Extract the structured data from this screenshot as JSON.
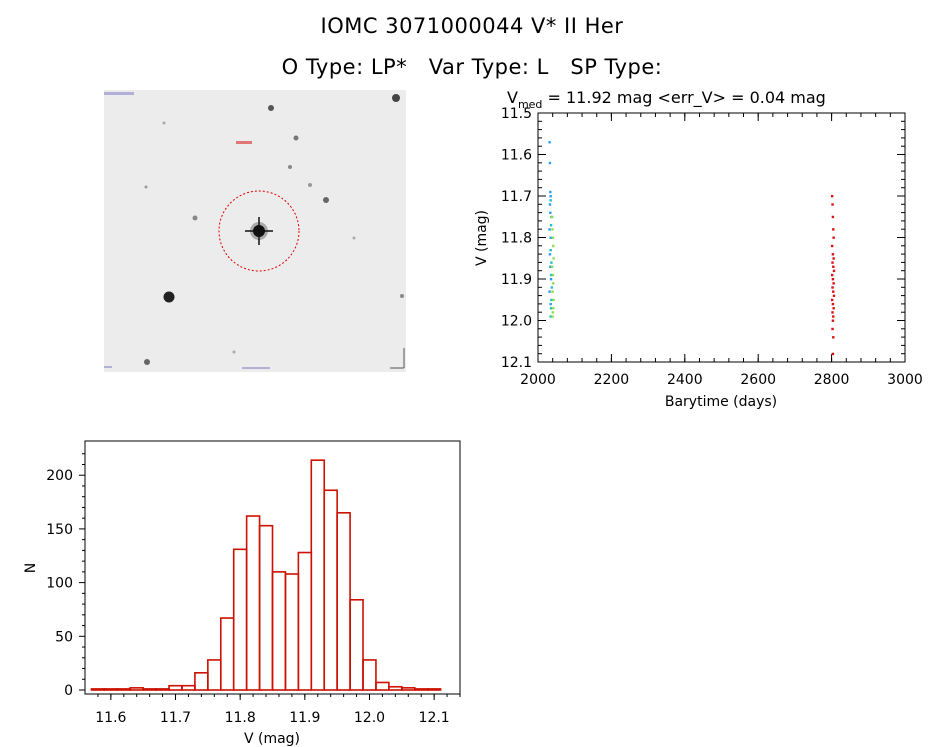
{
  "header": {
    "line1": "IOMC 3071000044    V* II Her",
    "otype": "O Type: LP*",
    "vartype": "Var Type: L",
    "sptype": "SP Type:"
  },
  "chart_data": [
    {
      "type": "image",
      "name": "finder-chart",
      "colors": {
        "background": "#ececec",
        "circle": "#dd0000"
      }
    },
    {
      "type": "scatter",
      "title_parts": {
        "v": "V",
        "sub": "med",
        "rest": " = 11.92 mag <err_V> = 0.04 mag"
      },
      "xlabel": "Barytime (days)",
      "ylabel": "V (mag)",
      "xlim": [
        2000,
        3000
      ],
      "ylim": [
        12.1,
        11.5
      ],
      "y_inverted": true,
      "xticks": [
        2000,
        2200,
        2400,
        2600,
        2800,
        3000
      ],
      "yticks": [
        11.5,
        11.6,
        11.7,
        11.8,
        11.9,
        12.0,
        12.1
      ],
      "xtick_labels": [
        "2000",
        "2200",
        "2400",
        "2600",
        "2800",
        "3000"
      ],
      "ytick_labels": [
        "11.5",
        "11.6",
        "11.7",
        "11.8",
        "11.9",
        "12.0",
        "12.1"
      ],
      "series": [
        {
          "color": "#2a9df4",
          "x": [
            2031,
            2032,
            2033,
            2034,
            2032,
            2033,
            2031,
            2034,
            2032,
            2033,
            2035,
            2031,
            2034
          ],
          "y": [
            11.57,
            11.62,
            11.69,
            11.7,
            11.72,
            11.74,
            11.78,
            11.8,
            11.84,
            11.87,
            11.9,
            11.93,
            11.96
          ]
        },
        {
          "color": "#20c0c8",
          "x": [
            2034,
            2036,
            2035,
            2037,
            2034,
            2036,
            2035,
            2037,
            2036,
            2035,
            2034
          ],
          "y": [
            11.71,
            11.75,
            11.77,
            11.8,
            11.83,
            11.86,
            11.89,
            11.92,
            11.95,
            11.97,
            11.99
          ]
        },
        {
          "color": "#8ee04a",
          "x": [
            2038,
            2039,
            2040,
            2041,
            2042,
            2038,
            2040,
            2041,
            2039,
            2042,
            2041,
            2040,
            2039
          ],
          "y": [
            11.75,
            11.78,
            11.8,
            11.82,
            11.85,
            11.87,
            11.89,
            11.91,
            11.93,
            11.95,
            11.97,
            11.98,
            11.99
          ]
        },
        {
          "color": "#dd1111",
          "x": [
            2801,
            2802,
            2803,
            2804,
            2805,
            2801,
            2803,
            2805,
            2802,
            2804,
            2806,
            2801,
            2803,
            2805,
            2802,
            2804,
            2806,
            2801,
            2803,
            2805,
            2802,
            2804,
            2803,
            2802,
            2804,
            2803
          ],
          "y": [
            11.7,
            11.72,
            11.75,
            11.78,
            11.8,
            11.82,
            11.84,
            11.85,
            11.86,
            11.87,
            11.88,
            11.89,
            11.9,
            11.91,
            11.92,
            11.93,
            11.94,
            11.95,
            11.96,
            11.97,
            11.98,
            11.99,
            12.0,
            12.02,
            12.04,
            12.08
          ]
        }
      ]
    },
    {
      "type": "bar",
      "style": "histogram-outline",
      "color": "#cc1100",
      "xlabel": "V (mag)",
      "ylabel": "N",
      "xlim": [
        11.56,
        12.14
      ],
      "ylim": [
        0,
        230
      ],
      "xticks": [
        11.6,
        11.7,
        11.8,
        11.9,
        12.0,
        12.1
      ],
      "yticks": [
        0,
        50,
        100,
        150,
        200
      ],
      "xtick_labels": [
        "11.6",
        "11.7",
        "11.8",
        "11.9",
        "12.0",
        "12.1"
      ],
      "ytick_labels": [
        "0",
        "50",
        "100",
        "150",
        "200"
      ],
      "bin_width": 0.02,
      "bin_starts": [
        11.57,
        11.59,
        11.61,
        11.63,
        11.65,
        11.67,
        11.69,
        11.71,
        11.73,
        11.75,
        11.77,
        11.79,
        11.81,
        11.83,
        11.85,
        11.87,
        11.89,
        11.91,
        11.93,
        11.95,
        11.97,
        11.99,
        12.01,
        12.03,
        12.05,
        12.07,
        12.09
      ],
      "values": [
        1,
        1,
        1,
        2,
        1,
        1,
        4,
        4,
        16,
        28,
        67,
        131,
        162,
        153,
        110,
        108,
        128,
        214,
        186,
        165,
        84,
        28,
        7,
        3,
        2,
        1,
        1
      ]
    }
  ]
}
